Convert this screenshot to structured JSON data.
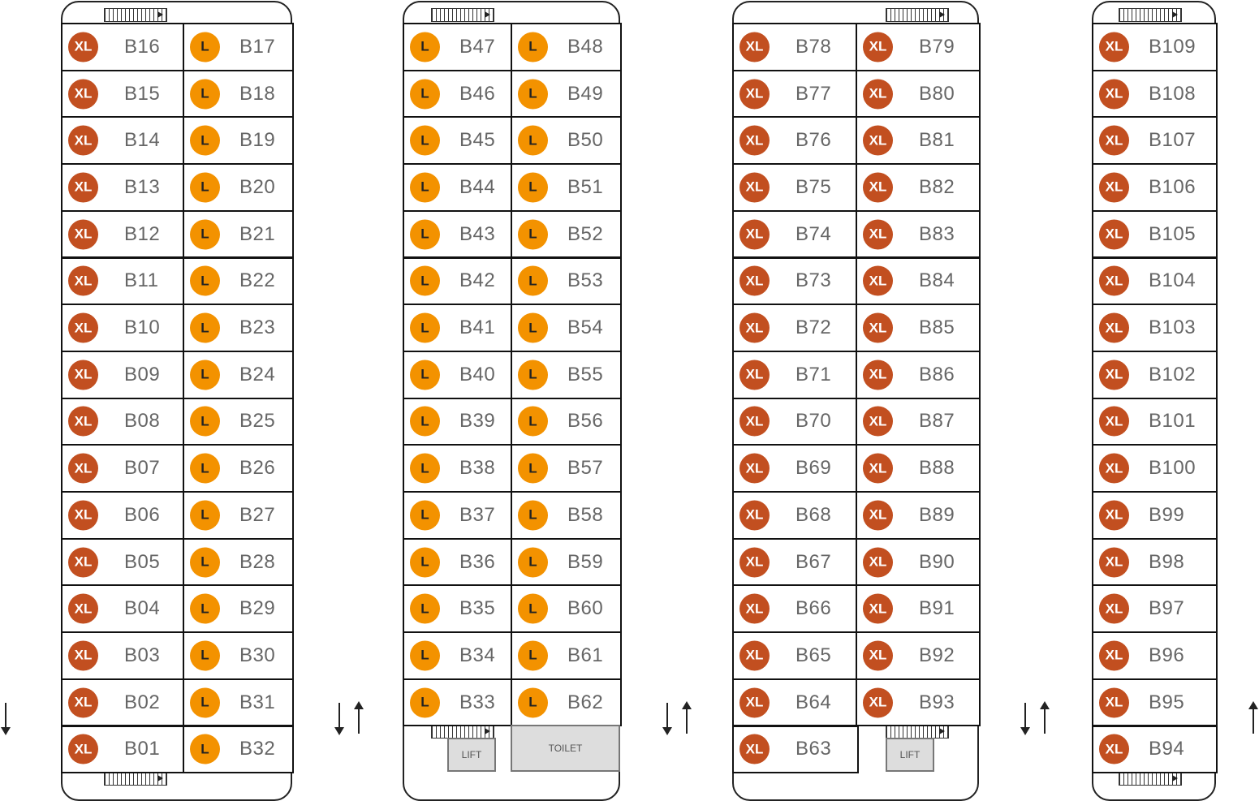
{
  "colors": {
    "xl": "#c24f20",
    "l": "#f39200"
  },
  "sizes": {
    "xl": "XL",
    "l": "L"
  },
  "blocks": [
    {
      "columns": [
        {
          "size": "XL",
          "units": [
            "B16",
            "B15",
            "B14",
            "B13",
            "B12",
            "B11",
            "B10",
            "B09",
            "B08",
            "B07",
            "B06",
            "B05",
            "B04",
            "B03",
            "B02",
            "B01"
          ]
        },
        {
          "size": "L",
          "units": [
            "B17",
            "B18",
            "B19",
            "B20",
            "B21",
            "B22",
            "B23",
            "B24",
            "B25",
            "B26",
            "B27",
            "B28",
            "B29",
            "B30",
            "B31",
            "B32"
          ]
        }
      ]
    },
    {
      "columns": [
        {
          "size": "L",
          "units": [
            "B47",
            "B46",
            "B45",
            "B44",
            "B43",
            "B42",
            "B41",
            "B40",
            "B39",
            "B38",
            "B37",
            "B36",
            "B35",
            "B34",
            "B33"
          ]
        },
        {
          "size": "L",
          "units": [
            "B48",
            "B49",
            "B50",
            "B51",
            "B52",
            "B53",
            "B54",
            "B55",
            "B56",
            "B57",
            "B58",
            "B59",
            "B60",
            "B61",
            "B62"
          ]
        }
      ],
      "rooms": [
        "LIFT",
        "TOILET"
      ]
    },
    {
      "columns": [
        {
          "size": "XL",
          "units": [
            "B78",
            "B77",
            "B76",
            "B75",
            "B74",
            "B73",
            "B72",
            "B71",
            "B70",
            "B69",
            "B68",
            "B67",
            "B66",
            "B65",
            "B64",
            "B63"
          ]
        },
        {
          "size": "XL",
          "units": [
            "B79",
            "B80",
            "B81",
            "B82",
            "B83",
            "B84",
            "B85",
            "B86",
            "B87",
            "B88",
            "B89",
            "B90",
            "B91",
            "B92",
            "B93"
          ]
        }
      ],
      "rooms": [
        "LIFT"
      ]
    },
    {
      "columns": [
        {
          "size": "XL",
          "units": [
            "B109",
            "B108",
            "B107",
            "B106",
            "B105",
            "B104",
            "B103",
            "B102",
            "B101",
            "B100",
            "B99",
            "B98",
            "B97",
            "B96",
            "B95",
            "B94"
          ]
        }
      ]
    }
  ]
}
